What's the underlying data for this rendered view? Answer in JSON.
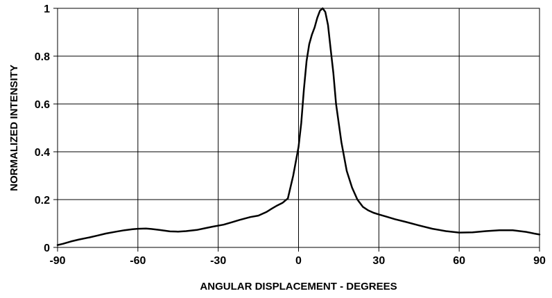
{
  "chart_data": {
    "type": "line",
    "title": "",
    "xlabel": "ANGULAR DISPLACEMENT - DEGREES",
    "ylabel": "NORMALIZED INTENSITY",
    "xlim": [
      -90,
      90
    ],
    "ylim": [
      0,
      1
    ],
    "xticks": [
      -90,
      -60,
      -30,
      0,
      30,
      60,
      90
    ],
    "yticks": [
      0,
      0.2,
      0.4,
      0.6,
      0.8,
      1
    ],
    "xtick_labels": [
      "-90",
      "-60",
      "-30",
      "0",
      "30",
      "60",
      "90"
    ],
    "ytick_labels": [
      "0",
      "0.2",
      "0.4",
      "0.6",
      "0.8",
      "1"
    ],
    "grid": true,
    "series": [
      {
        "color": "#000000",
        "x": [
          -90,
          -88,
          -85,
          -82,
          -78,
          -75,
          -72,
          -68,
          -65,
          -62,
          -60,
          -57,
          -55,
          -52,
          -48,
          -45,
          -42,
          -38,
          -35,
          -32,
          -28,
          -25,
          -22,
          -18,
          -15,
          -12,
          -10,
          -8,
          -6,
          -4,
          -2,
          0,
          1,
          2,
          3,
          4,
          5,
          6,
          7,
          8,
          9,
          10,
          11,
          12,
          13,
          14,
          16,
          18,
          20,
          22,
          24,
          26,
          28,
          30,
          33,
          36,
          40,
          45,
          50,
          55,
          60,
          65,
          70,
          75,
          80,
          85,
          88,
          90
        ],
        "y": [
          0.01,
          0.015,
          0.025,
          0.033,
          0.042,
          0.05,
          0.058,
          0.066,
          0.072,
          0.076,
          0.078,
          0.079,
          0.077,
          0.073,
          0.067,
          0.066,
          0.068,
          0.073,
          0.08,
          0.087,
          0.095,
          0.105,
          0.115,
          0.127,
          0.133,
          0.148,
          0.162,
          0.175,
          0.186,
          0.205,
          0.3,
          0.42,
          0.52,
          0.66,
          0.78,
          0.85,
          0.89,
          0.92,
          0.96,
          0.99,
          1.0,
          0.985,
          0.93,
          0.83,
          0.73,
          0.6,
          0.44,
          0.32,
          0.25,
          0.2,
          0.17,
          0.155,
          0.145,
          0.138,
          0.128,
          0.118,
          0.107,
          0.092,
          0.078,
          0.068,
          0.062,
          0.063,
          0.068,
          0.072,
          0.072,
          0.065,
          0.058,
          0.054
        ]
      }
    ]
  }
}
